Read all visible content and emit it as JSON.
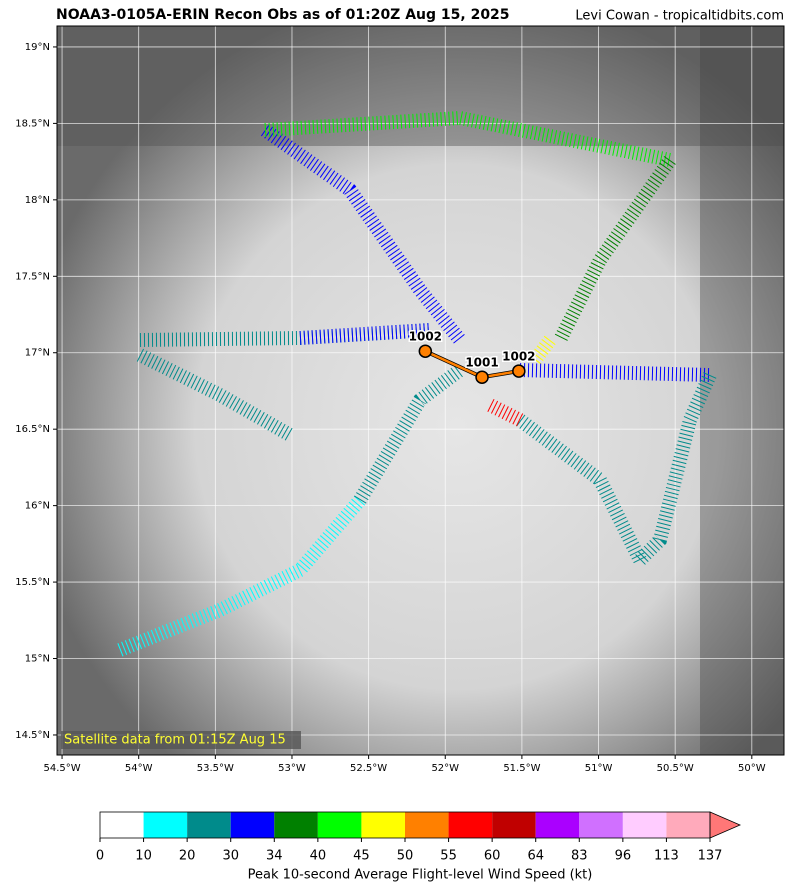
{
  "header": {
    "title": "NOAA3-0105A-ERIN Recon Obs as of 01:20Z Aug 15, 2025",
    "credit": "Levi Cowan - tropicaltidbits.com"
  },
  "map": {
    "xlim": [
      -54.533,
      -49.79
    ],
    "ylim": [
      14.369,
      19.137
    ],
    "xticks": [
      {
        "value": -54.5,
        "label": "54.5°W"
      },
      {
        "value": -54,
        "label": "54°W"
      },
      {
        "value": -53.5,
        "label": "53.5°W"
      },
      {
        "value": -53,
        "label": "53°W"
      },
      {
        "value": -52.5,
        "label": "52.5°W"
      },
      {
        "value": -52,
        "label": "52°W"
      },
      {
        "value": -51.5,
        "label": "51.5°W"
      },
      {
        "value": -51,
        "label": "51°W"
      },
      {
        "value": -50.5,
        "label": "50.5°W"
      },
      {
        "value": -50,
        "label": "50°W"
      }
    ],
    "yticks": [
      {
        "value": 14.5,
        "label": "14.5°N"
      },
      {
        "value": 15,
        "label": "15°N"
      },
      {
        "value": 15.5,
        "label": "15.5°N"
      },
      {
        "value": 16,
        "label": "16°N"
      },
      {
        "value": 16.5,
        "label": "16.5°N"
      },
      {
        "value": 17,
        "label": "17°N"
      },
      {
        "value": 17.5,
        "label": "17.5°N"
      },
      {
        "value": 18,
        "label": "18°N"
      },
      {
        "value": 18.5,
        "label": "18.5°N"
      },
      {
        "value": 19,
        "label": "19°N"
      }
    ],
    "grid": true,
    "drops": [
      {
        "lon": -52.13,
        "lat": 17.01,
        "label": "1002"
      },
      {
        "lon": -51.76,
        "lat": 16.84,
        "label": "1001"
      },
      {
        "lon": -51.52,
        "lat": 16.88,
        "label": "1002"
      }
    ],
    "drop_color": "#ff8000",
    "satellite_note": "Satellite data from 01:15Z Aug 15"
  },
  "colorbar": {
    "bounds": [
      0,
      10,
      20,
      30,
      34,
      40,
      45,
      50,
      55,
      60,
      64,
      83,
      96,
      113,
      137
    ],
    "colors": [
      "#ffffff",
      "#00ffff",
      "#008b8b",
      "#0000ff",
      "#008000",
      "#00ff00",
      "#ffff00",
      "#ff8000",
      "#ff0000",
      "#c00000",
      "#aa00ff",
      "#d070ff",
      "#ffccff",
      "#ffaabb"
    ],
    "extend_color": "#ff7777",
    "label": "Peak 10-second Average Flight-level Wind Speed (kt)"
  }
}
